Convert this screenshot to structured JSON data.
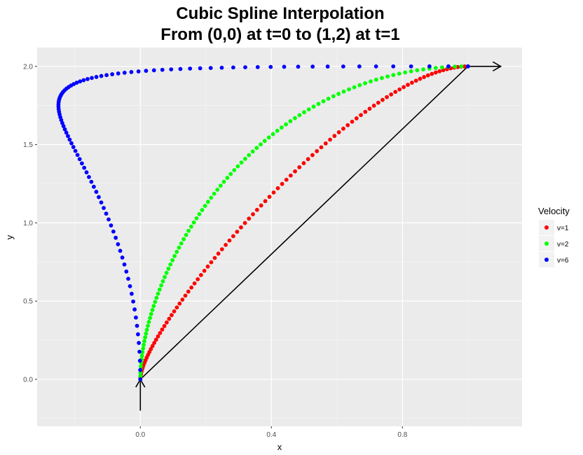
{
  "chart_data": {
    "type": "scatter",
    "title": "Cubic Spline Interpolation",
    "subtitle": "From (0,0) at t=0 to (1,2) at t=1",
    "xlabel": "x",
    "ylabel": "y",
    "xlim": [
      -0.315,
      1.165
    ],
    "ylim": [
      -0.3,
      2.12
    ],
    "x_ticks": [
      0.0,
      0.4,
      0.8
    ],
    "x_tick_labels": [
      "0.0",
      "0.4",
      "0.8"
    ],
    "y_ticks": [
      0.0,
      0.5,
      1.0,
      1.5,
      2.0
    ],
    "y_tick_labels": [
      "0.0",
      "0.5",
      "1.0",
      "1.5",
      "2.0"
    ],
    "grid": true,
    "legend": {
      "title": "Velocity",
      "position": "right",
      "entries": [
        {
          "label": "v=1",
          "color": "#FF0000"
        },
        {
          "label": "v=2",
          "color": "#00FF00"
        },
        {
          "label": "v=6",
          "color": "#0000FF"
        }
      ]
    },
    "series": [
      {
        "name": "v=1",
        "color": "#FF0000",
        "velocity": 1,
        "points": 100
      },
      {
        "name": "v=2",
        "color": "#00FF00",
        "velocity": 2,
        "points": 100
      },
      {
        "name": "v=6",
        "color": "#0000FF",
        "velocity": 6,
        "points": 100
      }
    ],
    "spline": {
      "start": [
        0,
        0
      ],
      "end": [
        1,
        2
      ],
      "start_tangent": [
        0,
        1
      ],
      "end_tangent": [
        1,
        0
      ]
    },
    "annotations": [
      {
        "kind": "segment",
        "from": [
          0,
          -0.2
        ],
        "to": [
          0,
          0
        ],
        "arrow": true
      },
      {
        "kind": "segment",
        "from": [
          0,
          0
        ],
        "to": [
          1,
          2
        ],
        "arrow": false
      },
      {
        "kind": "segment",
        "from": [
          1,
          2
        ],
        "to": [
          1.1,
          2
        ],
        "arrow": true
      }
    ]
  }
}
